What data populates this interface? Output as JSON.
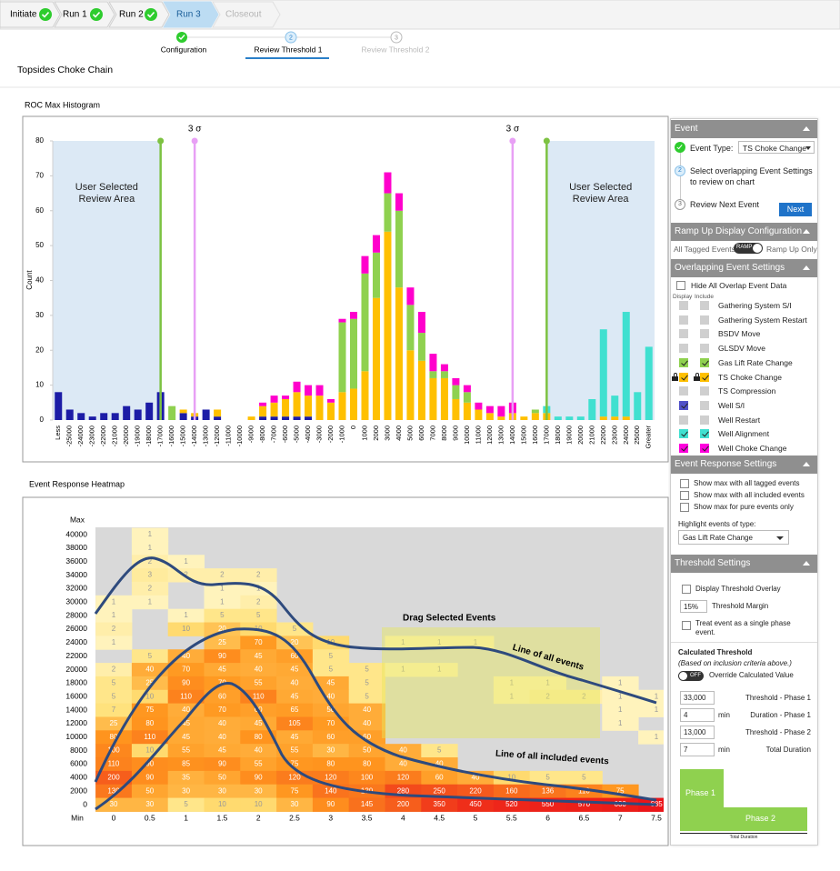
{
  "breadcrumb": [
    "Initiate",
    "Run 1",
    "Run 2",
    "Run 3",
    "Closeout"
  ],
  "steps": [
    {
      "label": "Configuration"
    },
    {
      "number": 2,
      "label": "Review Threshold 1"
    },
    {
      "number": 3,
      "label": "Review Threshold 2"
    }
  ],
  "page_title": "Topsides Choke Chain",
  "histogram": {
    "title": "ROC Max Histogram",
    "y_label": "Count",
    "ylim": [
      0,
      80
    ],
    "yticks": [
      0,
      10,
      20,
      30,
      40,
      50,
      60,
      70,
      80
    ],
    "categories": [
      "Less",
      -25000,
      -24000,
      -23000,
      -22000,
      -21000,
      -20000,
      -19000,
      -18000,
      -17000,
      -16000,
      -15000,
      -14000,
      -13000,
      -12000,
      -11000,
      -10000,
      -9000,
      -8000,
      -7000,
      -6000,
      -5000,
      -4000,
      -3000,
      -2000,
      -1000,
      0,
      1000,
      2000,
      3000,
      4000,
      5000,
      6000,
      7000,
      8000,
      9000,
      10000,
      11000,
      12000,
      13000,
      14000,
      15000,
      16000,
      17000,
      18000,
      19000,
      20000,
      21000,
      22000,
      23000,
      24000,
      25000,
      "Greater"
    ],
    "series": [
      {
        "name": "Well S/I",
        "color": "#1c1ca6",
        "values": [
          8,
          3,
          2,
          1,
          2,
          2,
          4,
          3,
          5,
          8,
          0,
          2,
          1,
          3,
          1,
          0,
          0,
          0,
          1,
          1,
          1,
          1,
          1,
          0,
          0,
          0,
          0,
          0,
          0,
          0,
          0,
          0,
          0,
          0,
          0,
          0,
          0,
          0,
          0,
          0,
          0,
          0,
          0,
          0,
          0,
          0,
          0,
          0,
          0,
          0,
          0,
          0,
          0
        ]
      },
      {
        "name": "TS Choke Change",
        "color": "#ffc000",
        "values": [
          0,
          0,
          0,
          0,
          0,
          0,
          0,
          0,
          0,
          0,
          0,
          1,
          1,
          0,
          2,
          0,
          0,
          1,
          3,
          4,
          5,
          7,
          6,
          7,
          5,
          8,
          9,
          14,
          35,
          54,
          38,
          20,
          17,
          12,
          12,
          6,
          5,
          3,
          2,
          1,
          2,
          1,
          2,
          2,
          0,
          0,
          0,
          0,
          1,
          1,
          1,
          0,
          0
        ]
      },
      {
        "name": "Gas Lift Rate Change",
        "color": "#8fd14f",
        "values": [
          0,
          0,
          0,
          0,
          0,
          0,
          0,
          0,
          0,
          0,
          4,
          0,
          0,
          0,
          0,
          0,
          0,
          0,
          0,
          0,
          0,
          0,
          0,
          0,
          0,
          20,
          20,
          28,
          13,
          11,
          22,
          13,
          8,
          2,
          2,
          4,
          3,
          0,
          0,
          0,
          0,
          0,
          1,
          0,
          0,
          0,
          0,
          0,
          0,
          0,
          0,
          0,
          0
        ]
      },
      {
        "name": "Well Choke Change",
        "color": "#ff00cc",
        "values": [
          0,
          0,
          0,
          0,
          0,
          0,
          0,
          0,
          0,
          0,
          0,
          0,
          0,
          0,
          0,
          0,
          0,
          0,
          1,
          2,
          1,
          3,
          3,
          3,
          1,
          1,
          2,
          5,
          5,
          6,
          5,
          5,
          6,
          5,
          2,
          2,
          2,
          2,
          2,
          3,
          3,
          0,
          0,
          0,
          0,
          0,
          0,
          0,
          0,
          0,
          0,
          0,
          0
        ]
      },
      {
        "name": "Well Alignment",
        "color": "#40e0d0",
        "values": [
          0,
          0,
          0,
          0,
          0,
          0,
          0,
          0,
          0,
          0,
          0,
          0,
          0,
          0,
          0,
          0,
          0,
          0,
          0,
          0,
          0,
          0,
          0,
          0,
          0,
          0,
          0,
          0,
          0,
          0,
          0,
          0,
          0,
          0,
          0,
          0,
          0,
          0,
          0,
          0,
          0,
          0,
          0,
          2,
          1,
          1,
          1,
          6,
          25,
          6,
          30,
          8,
          21
        ]
      }
    ],
    "review_limits": [
      -17000,
      17000
    ],
    "review_color": "#7dc242",
    "sigma_limits": [
      -14000,
      14000
    ],
    "sigma_color": "#e8a0f5",
    "sigma_label": "3 σ",
    "review_area_label": "User Selected Review Area"
  },
  "heatmap": {
    "title": "Event Response Heatmap",
    "max_label": "Max",
    "min_label": "Min",
    "y_labels": [
      40000,
      38000,
      36000,
      34000,
      32000,
      30000,
      28000,
      26000,
      24000,
      22000,
      20000,
      18000,
      16000,
      14000,
      12000,
      10000,
      8000,
      6000,
      4000,
      2000,
      0
    ],
    "x_labels": [
      0,
      0.5,
      1,
      1.5,
      2,
      2.5,
      3,
      3.5,
      4,
      4.5,
      5,
      5.5,
      6,
      6.5,
      7,
      7.5
    ],
    "rows": [
      [
        null,
        1,
        null,
        null,
        null,
        null,
        null,
        null,
        null,
        null,
        null,
        null,
        null,
        null,
        null,
        null
      ],
      [
        null,
        1,
        null,
        null,
        null,
        null,
        null,
        null,
        null,
        null,
        null,
        null,
        null,
        null,
        null,
        null
      ],
      [
        null,
        2,
        1,
        null,
        null,
        null,
        null,
        null,
        null,
        null,
        null,
        null,
        null,
        null,
        null,
        null
      ],
      [
        null,
        3,
        2,
        2,
        2,
        null,
        null,
        null,
        null,
        null,
        null,
        null,
        null,
        null,
        null,
        null
      ],
      [
        null,
        2,
        null,
        1,
        1,
        null,
        null,
        null,
        null,
        null,
        null,
        null,
        null,
        null,
        null,
        null
      ],
      [
        1,
        1,
        null,
        1,
        2,
        null,
        null,
        null,
        null,
        null,
        null,
        null,
        null,
        null,
        null,
        null
      ],
      [
        1,
        null,
        1,
        5,
        5,
        null,
        null,
        null,
        null,
        null,
        null,
        null,
        null,
        null,
        null,
        null
      ],
      [
        2,
        null,
        10,
        20,
        10,
        5,
        null,
        null,
        null,
        null,
        null,
        null,
        null,
        null,
        null,
        null
      ],
      [
        1,
        null,
        null,
        25,
        70,
        20,
        10,
        null,
        1,
        1,
        1,
        null,
        null,
        null,
        null,
        null
      ],
      [
        null,
        5,
        40,
        90,
        45,
        60,
        5,
        null,
        null,
        null,
        null,
        null,
        null,
        null,
        null,
        null
      ],
      [
        2,
        40,
        70,
        45,
        40,
        45,
        5,
        5,
        1,
        1,
        null,
        null,
        null,
        null,
        null,
        null
      ],
      [
        5,
        25,
        90,
        70,
        55,
        40,
        45,
        5,
        null,
        null,
        null,
        1,
        1,
        null,
        1,
        null
      ],
      [
        5,
        10,
        110,
        60,
        110,
        45,
        40,
        5,
        null,
        null,
        null,
        1,
        2,
        2,
        1,
        1
      ],
      [
        7,
        75,
        40,
        70,
        60,
        65,
        50,
        40,
        null,
        null,
        null,
        null,
        null,
        null,
        1,
        1
      ],
      [
        25,
        80,
        45,
        40,
        45,
        105,
        70,
        40,
        null,
        null,
        null,
        null,
        null,
        null,
        1,
        null
      ],
      [
        80,
        110,
        45,
        40,
        80,
        45,
        60,
        60,
        null,
        null,
        null,
        null,
        null,
        null,
        null,
        1
      ],
      [
        100,
        10,
        55,
        45,
        40,
        55,
        30,
        50,
        40,
        5,
        null,
        null,
        null,
        null,
        null,
        null
      ],
      [
        110,
        90,
        85,
        90,
        55,
        75,
        80,
        80,
        40,
        40,
        null,
        null,
        null,
        null,
        null,
        null
      ],
      [
        200,
        90,
        35,
        50,
        90,
        120,
        120,
        100,
        120,
        60,
        40,
        10,
        5,
        5,
        null,
        null
      ],
      [
        130,
        50,
        30,
        30,
        30,
        75,
        140,
        130,
        280,
        250,
        220,
        160,
        136,
        110,
        75,
        null
      ],
      [
        30,
        30,
        5,
        10,
        10,
        30,
        90,
        145,
        200,
        350,
        450,
        520,
        550,
        570,
        600,
        685
      ]
    ],
    "drag_label": "Drag Selected Events",
    "all_events_label": "Line of all events",
    "included_events_label": "Line of all included events"
  },
  "panel": {
    "event": {
      "header": "Event",
      "steps": [
        {
          "label": "Event Type:"
        },
        {
          "number": 2,
          "label": "Select overlapping Event Settings to review on chart"
        },
        {
          "number": 3,
          "label": "Review Next Event"
        }
      ],
      "event_type": "TS Choke Change",
      "next_button": "Next"
    },
    "ramp": {
      "header": "Ramp Up Display Configuration",
      "left": "All Tagged Events",
      "toggle": "RAMP",
      "right": "Ramp Up Only"
    },
    "overlap": {
      "header": "Overlapping Event Settings",
      "hide_all": "Hide All Overlap Event Data",
      "display_col": "Display",
      "include_col": "Include",
      "events": [
        {
          "name": "Gathering System S/I",
          "color": "#cfcfcf",
          "display": false,
          "include": false
        },
        {
          "name": "Gathering System Restart",
          "color": "#cfcfcf",
          "display": false,
          "include": false
        },
        {
          "name": "BSDV Move",
          "color": "#cfcfcf",
          "display": false,
          "include": false
        },
        {
          "name": "GLSDV Move",
          "color": "#cfcfcf",
          "display": false,
          "include": false
        },
        {
          "name": "Gas Lift Rate Change",
          "color": "#8fd14f",
          "display": true,
          "include": true
        },
        {
          "name": "TS Choke Change",
          "color": "#ffc000",
          "display": true,
          "include": true,
          "locked": true
        },
        {
          "name": "TS Compression",
          "color": "#cfcfcf",
          "display": false,
          "include": false
        },
        {
          "name": "Well S/I",
          "color": "#5050c8",
          "display": true,
          "include": false
        },
        {
          "name": "Well Restart",
          "color": "#cfcfcf",
          "display": false,
          "include": false
        },
        {
          "name": "Well Alignment",
          "color": "#40e0d0",
          "display": true,
          "include": true
        },
        {
          "name": "Well Choke Change",
          "color": "#ff00dd",
          "display": true,
          "include": true
        }
      ]
    },
    "response": {
      "header": "Event Response Settings",
      "options": [
        "Show max with all tagged events",
        "Show max with all included events",
        "Show max for pure events only"
      ],
      "highlight_label": "Highlight events of type:",
      "highlight": "Gas Lift Rate Change"
    },
    "threshold": {
      "header": "Threshold Settings",
      "overlay": "Display Threshold Overlay",
      "margin": "15%",
      "margin_label": "Threshold Margin",
      "single_phase": "Treat event as a single phase event.",
      "calc_title": "Calculated Threshold",
      "calc_note": "(Based on inclusion criteria above.)",
      "toggle": "OFF",
      "override": "Override Calculated Value",
      "fields": [
        {
          "value": "33,000",
          "label": "Threshold - Phase 1"
        },
        {
          "value": "4",
          "unit": "min",
          "label": "Duration - Phase 1"
        },
        {
          "value": "13,000",
          "label": "Threshold - Phase 2"
        },
        {
          "value": "7",
          "unit": "min",
          "label": "Total Duration"
        }
      ],
      "phase1": "Phase 1",
      "phase2": "Phase 2",
      "total": "Total Duration"
    }
  }
}
